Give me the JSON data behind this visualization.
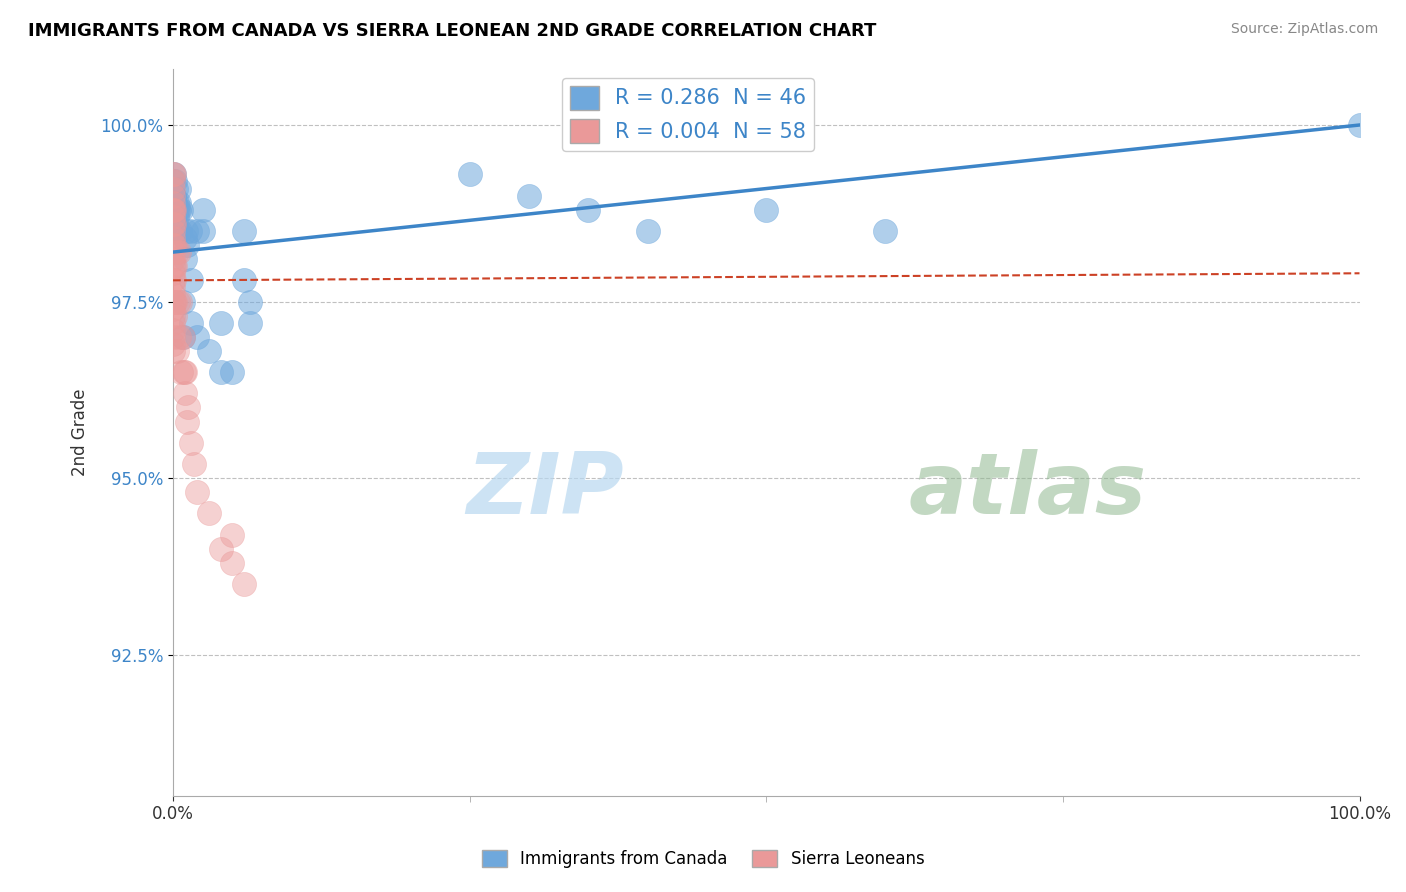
{
  "title": "IMMIGRANTS FROM CANADA VS SIERRA LEONEAN 2ND GRADE CORRELATION CHART",
  "source": "Source: ZipAtlas.com",
  "ylabel": "2nd Grade",
  "xlim": [
    0.0,
    100.0
  ],
  "ylim": [
    0.905,
    1.008
  ],
  "yticks": [
    0.925,
    0.95,
    0.975,
    1.0
  ],
  "ytick_labels": [
    "92.5%",
    "95.0%",
    "97.5%",
    "100.0%"
  ],
  "xtick_labels": [
    "0.0%",
    "100.0%"
  ],
  "xticks": [
    0.0,
    100.0
  ],
  "blue_R": 0.286,
  "blue_N": 46,
  "pink_R": 0.004,
  "pink_N": 58,
  "legend_label_blue": "Immigrants from Canada",
  "legend_label_pink": "Sierra Leoneans",
  "blue_color": "#6fa8dc",
  "pink_color": "#ea9999",
  "trend_blue_color": "#3d85c8",
  "trend_pink_color": "#cc4125",
  "watermark_zip": "ZIP",
  "watermark_atlas": "atlas",
  "blue_x": [
    0.0,
    0.05,
    0.1,
    0.1,
    0.15,
    0.2,
    0.2,
    0.25,
    0.3,
    0.3,
    0.35,
    0.4,
    0.4,
    0.5,
    0.5,
    0.5,
    0.6,
    0.7,
    0.8,
    0.8,
    1.0,
    1.0,
    1.1,
    1.2,
    1.4,
    1.5,
    1.5,
    2.0,
    2.0,
    2.5,
    2.5,
    3.0,
    4.0,
    4.0,
    5.0,
    6.0,
    6.0,
    6.5,
    6.5,
    25.0,
    30.0,
    35.0,
    40.0,
    50.0,
    60.0,
    100.0
  ],
  "blue_y": [
    0.992,
    0.99,
    0.993,
    0.99,
    0.989,
    0.992,
    0.989,
    0.991,
    0.989,
    0.988,
    0.987,
    0.988,
    0.985,
    0.991,
    0.989,
    0.988,
    0.985,
    0.988,
    0.975,
    0.97,
    0.984,
    0.981,
    0.985,
    0.983,
    0.985,
    0.978,
    0.972,
    0.985,
    0.97,
    0.988,
    0.985,
    0.968,
    0.972,
    0.965,
    0.965,
    0.985,
    0.978,
    0.975,
    0.972,
    0.993,
    0.99,
    0.988,
    0.985,
    0.988,
    0.985,
    1.0
  ],
  "pink_x": [
    0.0,
    0.0,
    0.0,
    0.0,
    0.0,
    0.0,
    0.0,
    0.0,
    0.0,
    0.0,
    0.0,
    0.0,
    0.0,
    0.0,
    0.0,
    0.0,
    0.0,
    0.0,
    0.0,
    0.0,
    0.0,
    0.0,
    0.0,
    0.0,
    0.0,
    0.0,
    0.0,
    0.05,
    0.1,
    0.1,
    0.1,
    0.2,
    0.2,
    0.3,
    0.4,
    0.5,
    0.5,
    0.6,
    0.7,
    0.8,
    0.9,
    1.0,
    1.0,
    1.2,
    1.3,
    1.5,
    1.8,
    2.0,
    3.0,
    4.0,
    5.0,
    5.0,
    6.0,
    0.05,
    0.05,
    0.1,
    0.2,
    0.3
  ],
  "pink_y": [
    0.993,
    0.992,
    0.991,
    0.99,
    0.989,
    0.988,
    0.988,
    0.987,
    0.986,
    0.985,
    0.984,
    0.983,
    0.982,
    0.981,
    0.98,
    0.979,
    0.978,
    0.977,
    0.976,
    0.975,
    0.974,
    0.973,
    0.972,
    0.971,
    0.97,
    0.969,
    0.968,
    0.993,
    0.988,
    0.986,
    0.983,
    0.98,
    0.975,
    0.982,
    0.975,
    0.982,
    0.97,
    0.975,
    0.965,
    0.97,
    0.965,
    0.962,
    0.965,
    0.958,
    0.96,
    0.955,
    0.952,
    0.948,
    0.945,
    0.94,
    0.942,
    0.938,
    0.935,
    0.98,
    0.975,
    0.978,
    0.973,
    0.968
  ],
  "blue_trendline_x": [
    0.0,
    100.0
  ],
  "blue_trendline_y": [
    0.982,
    1.0
  ],
  "pink_trendline_x": [
    0.0,
    100.0
  ],
  "pink_trendline_y": [
    0.978,
    0.979
  ]
}
